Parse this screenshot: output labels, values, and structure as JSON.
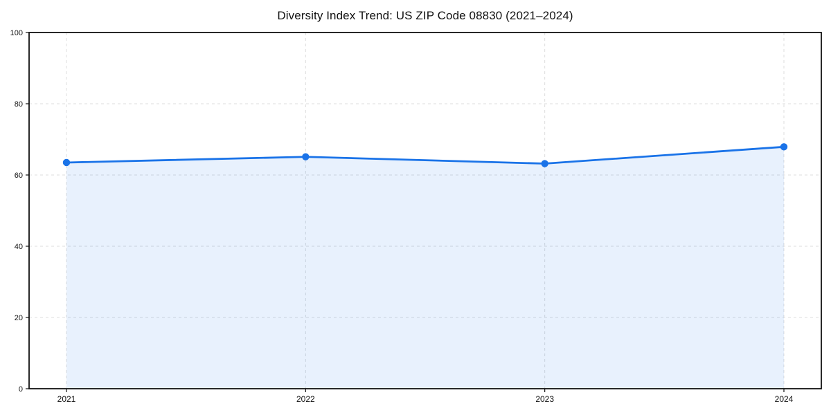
{
  "chart_data": {
    "type": "area",
    "title": "Diversity Index Trend: US ZIP Code 08830 (2021–2024)",
    "categories": [
      "2021",
      "2022",
      "2023",
      "2024"
    ],
    "series": [
      {
        "name": "Diversity Index",
        "values": [
          63.5,
          65.1,
          63.2,
          67.9
        ]
      }
    ],
    "xlabel": "",
    "ylabel": "",
    "ylim": [
      0,
      100
    ],
    "y_ticks": [
      0,
      20,
      40,
      60,
      80,
      100
    ],
    "grid": true,
    "grid_style": "dashed",
    "legend": "none",
    "colors": {
      "line": "#1a73e8",
      "marker": "#1a73e8",
      "fill": "#1a73e8",
      "fill_opacity": 0.1,
      "grid": "#dcdcdc",
      "axis": "#111111",
      "text": "#111111",
      "background": "#ffffff"
    }
  }
}
